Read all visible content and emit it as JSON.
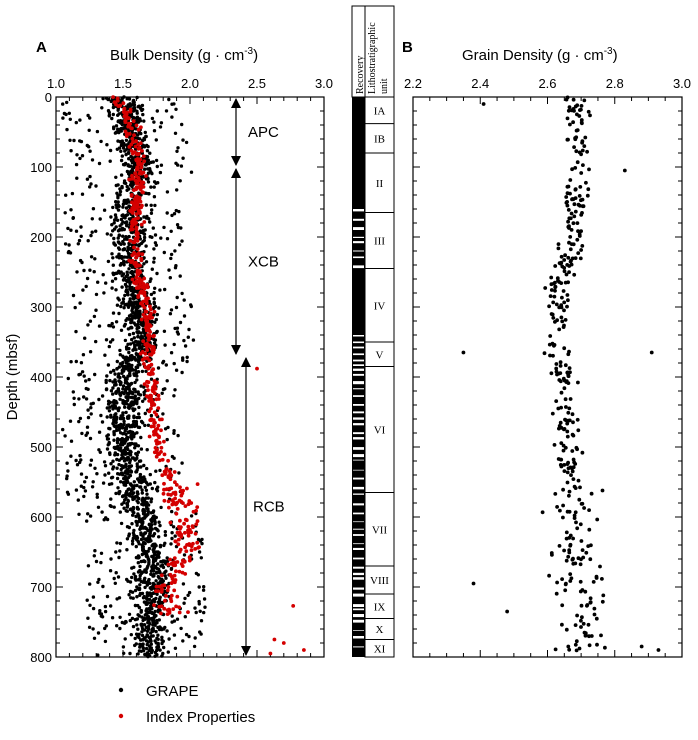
{
  "panels": {
    "a": {
      "letter": "A",
      "title": "Bulk Density (g · cm",
      "title_sup": "-3",
      "title_end": ")"
    },
    "b": {
      "letter": "B",
      "title": "Grain Density (g · cm",
      "title_sup": "-3",
      "title_end": ")"
    }
  },
  "y_axis": {
    "label": "Depth (mbsf)",
    "ticks": [
      "0",
      "100",
      "200",
      "300",
      "400",
      "500",
      "600",
      "700",
      "800"
    ]
  },
  "x_axis_a": {
    "ticks": [
      "1.0",
      "1.5",
      "2.0",
      "2.5",
      "3.0"
    ]
  },
  "x_axis_b": {
    "ticks": [
      "2.2",
      "2.4",
      "2.6",
      "2.8",
      "3.0"
    ]
  },
  "coring": [
    {
      "label": "APC",
      "top": 0,
      "bottom": 100
    },
    {
      "label": "XCB",
      "top": 100,
      "bottom": 370
    },
    {
      "label": "RCB",
      "top": 370,
      "bottom": 800
    }
  ],
  "columns": {
    "recovery": "Recovery",
    "litho_1": "Lithostratigraphic",
    "litho_2": "unit"
  },
  "units": [
    {
      "label": "IA",
      "top": 0,
      "bottom": 38
    },
    {
      "label": "IB",
      "top": 38,
      "bottom": 80
    },
    {
      "label": "II",
      "top": 80,
      "bottom": 165
    },
    {
      "label": "III",
      "top": 165,
      "bottom": 245
    },
    {
      "label": "IV",
      "top": 245,
      "bottom": 350
    },
    {
      "label": "V",
      "top": 350,
      "bottom": 385
    },
    {
      "label": "VI",
      "top": 385,
      "bottom": 565
    },
    {
      "label": "VII",
      "top": 565,
      "bottom": 670
    },
    {
      "label": "VIII",
      "top": 670,
      "bottom": 710
    },
    {
      "label": "IX",
      "top": 710,
      "bottom": 745
    },
    {
      "label": "X",
      "top": 745,
      "bottom": 775
    },
    {
      "label": "XI",
      "top": 775,
      "bottom": 800
    }
  ],
  "legend": [
    {
      "label": "GRAPE",
      "color": "#000000"
    },
    {
      "label": "Index Properties",
      "color": "#d40000"
    }
  ],
  "chart_data": [
    {
      "type": "scatter",
      "title": "Bulk Density (g · cm-3)",
      "xlabel": "Bulk Density (g · cm-3)",
      "ylabel": "Depth (mbsf)",
      "xlim": [
        1.0,
        3.0
      ],
      "ylim": [
        800,
        0
      ],
      "series": [
        {
          "name": "GRAPE",
          "trend": [
            [
              0,
              1.5
            ],
            [
              50,
              1.56
            ],
            [
              100,
              1.62
            ],
            [
              150,
              1.55
            ],
            [
              200,
              1.55
            ],
            [
              250,
              1.55
            ],
            [
              300,
              1.62
            ],
            [
              350,
              1.65
            ],
            [
              400,
              1.52
            ],
            [
              500,
              1.52
            ],
            [
              560,
              1.57
            ],
            [
              600,
              1.65
            ],
            [
              650,
              1.72
            ],
            [
              700,
              1.72
            ],
            [
              750,
              1.7
            ],
            [
              800,
              1.7
            ]
          ],
          "spread_low": 1.05,
          "spread_high": 2.15
        },
        {
          "name": "Index Properties",
          "trend": [
            [
              0,
              1.45
            ],
            [
              50,
              1.58
            ],
            [
              100,
              1.62
            ],
            [
              150,
              1.6
            ],
            [
              200,
              1.6
            ],
            [
              250,
              1.6
            ],
            [
              300,
              1.68
            ],
            [
              350,
              1.7
            ],
            [
              380,
              1.68
            ],
            [
              400,
              1.72
            ],
            [
              450,
              1.73
            ],
            [
              500,
              1.76
            ],
            [
              560,
              1.88
            ],
            [
              600,
              1.95
            ],
            [
              650,
              1.97
            ],
            [
              700,
              1.82
            ],
            [
              745,
              1.85
            ]
          ],
          "outliers": [
            [
              388,
              2.5
            ],
            [
              727,
              2.77
            ],
            [
              775,
              2.63
            ],
            [
              780,
              2.7
            ],
            [
              790,
              2.85
            ],
            [
              795,
              2.6
            ]
          ]
        }
      ]
    },
    {
      "type": "scatter",
      "title": "Grain Density (g · cm-3)",
      "xlabel": "Grain Density (g · cm-3)",
      "ylabel": "Depth (mbsf)",
      "xlim": [
        2.2,
        3.0
      ],
      "ylim": [
        800,
        0
      ],
      "series": [
        {
          "name": "Grain density",
          "trend": [
            [
              0,
              2.68
            ],
            [
              100,
              2.7
            ],
            [
              200,
              2.67
            ],
            [
              300,
              2.63
            ],
            [
              400,
              2.65
            ],
            [
              500,
              2.66
            ],
            [
              560,
              2.68
            ],
            [
              650,
              2.67
            ],
            [
              700,
              2.7
            ],
            [
              800,
              2.7
            ]
          ],
          "outliers": [
            [
              10,
              2.41
            ],
            [
              105,
              2.83
            ],
            [
              365,
              2.35
            ],
            [
              365,
              2.91
            ],
            [
              695,
              2.38
            ],
            [
              735,
              2.48
            ],
            [
              790,
              2.93
            ],
            [
              785,
              2.88
            ]
          ]
        }
      ]
    }
  ]
}
